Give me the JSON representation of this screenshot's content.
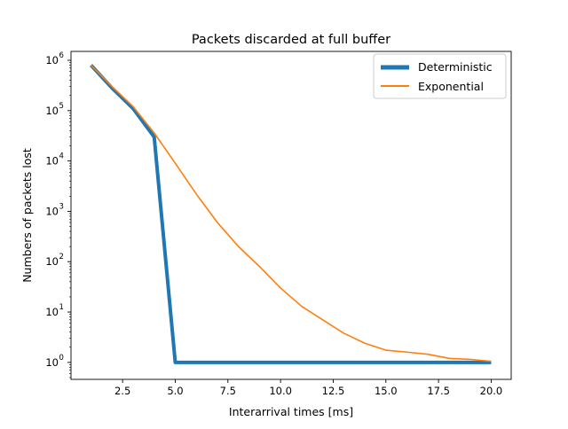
{
  "chart_data": {
    "type": "line",
    "title": "Packets discarded at full buffer",
    "xlabel": "Interarrival times [ms]",
    "ylabel": "Numbers of packets lost",
    "xlim": [
      0.05,
      20.95
    ],
    "ylim": [
      0.46,
      1500000
    ],
    "yscale": "log",
    "xticks": [
      2.5,
      5.0,
      7.5,
      10.0,
      12.5,
      15.0,
      17.5,
      20.0
    ],
    "xtick_labels": [
      "2.5",
      "5.0",
      "7.5",
      "10.0",
      "12.5",
      "15.0",
      "17.5",
      "20.0"
    ],
    "yticks": [
      1,
      10,
      100,
      1000,
      10000,
      100000,
      1000000
    ],
    "ytick_labels": [
      [
        "10",
        "0"
      ],
      [
        "10",
        "1"
      ],
      [
        "10",
        "2"
      ],
      [
        "10",
        "3"
      ],
      [
        "10",
        "4"
      ],
      [
        "10",
        "5"
      ],
      [
        "10",
        "6"
      ]
    ],
    "grid": false,
    "legend_position": "top-right",
    "x": [
      1,
      2,
      3,
      4,
      5,
      6,
      7,
      8,
      9,
      10,
      11,
      12,
      13,
      14,
      15,
      16,
      17,
      18,
      19,
      20
    ],
    "series": [
      {
        "name": "Deterministic",
        "color": "#1f77b4",
        "values": [
          800000,
          280000,
          110000,
          30000,
          1,
          1,
          1,
          1,
          1,
          1,
          1,
          1,
          1,
          1,
          1,
          1,
          1,
          1,
          1,
          1
        ]
      },
      {
        "name": "Exponential",
        "color": "#ff7f0e",
        "values": [
          800000,
          300000,
          120000,
          36000,
          9000,
          2200,
          600,
          200,
          80,
          30,
          13,
          7,
          3.8,
          2.4,
          1.75,
          1.6,
          1.45,
          1.2,
          1.15,
          1.05
        ]
      }
    ]
  }
}
